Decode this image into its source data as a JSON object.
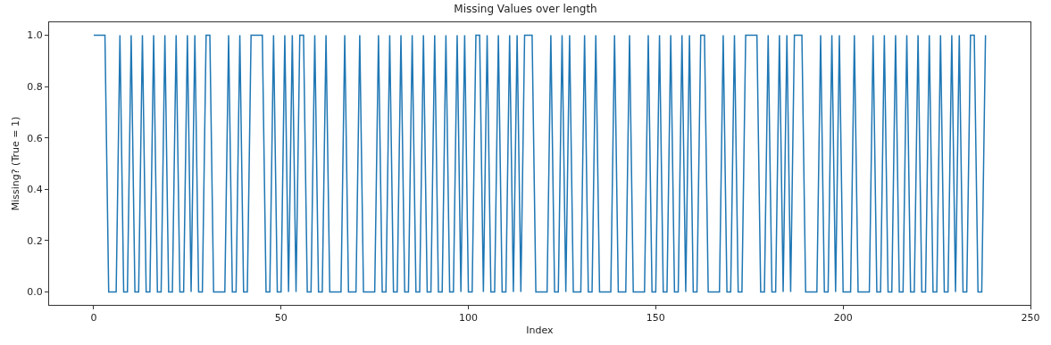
{
  "chart_data": {
    "type": "line",
    "title": "Missing Values over length",
    "xlabel": "Index",
    "ylabel": "Missing? (True = 1)",
    "x": [
      0,
      1,
      2,
      3,
      4,
      5,
      6,
      7,
      8,
      9,
      10,
      11,
      12,
      13,
      14,
      15,
      16,
      17,
      18,
      19,
      20,
      21,
      22,
      23,
      24,
      25,
      26,
      27,
      28,
      29,
      30,
      31,
      32,
      33,
      34,
      35,
      36,
      37,
      38,
      39,
      40,
      41,
      42,
      43,
      44,
      45,
      46,
      47,
      48,
      49,
      50,
      51,
      52,
      53,
      54,
      55,
      56,
      57,
      58,
      59,
      60,
      61,
      62,
      63,
      64,
      65,
      66,
      67,
      68,
      69,
      70,
      71,
      72,
      73,
      74,
      75,
      76,
      77,
      78,
      79,
      80,
      81,
      82,
      83,
      84,
      85,
      86,
      87,
      88,
      89,
      90,
      91,
      92,
      93,
      94,
      95,
      96,
      97,
      98,
      99,
      100,
      101,
      102,
      103,
      104,
      105,
      106,
      107,
      108,
      109,
      110,
      111,
      112,
      113,
      114,
      115,
      116,
      117,
      118,
      119,
      120,
      121,
      122,
      123,
      124,
      125,
      126,
      127,
      128,
      129,
      130,
      131,
      132,
      133,
      134,
      135,
      136,
      137,
      138,
      139,
      140,
      141,
      142,
      143,
      144,
      145,
      146,
      147,
      148,
      149,
      150,
      151,
      152,
      153,
      154,
      155,
      156,
      157,
      158,
      159,
      160,
      161,
      162,
      163,
      164,
      165,
      166,
      167,
      168,
      169,
      170,
      171,
      172,
      173,
      174,
      175,
      176,
      177,
      178,
      179,
      180,
      181,
      182,
      183,
      184,
      185,
      186,
      187,
      188,
      189,
      190,
      191,
      192,
      193,
      194,
      195,
      196,
      197,
      198,
      199,
      200,
      201,
      202,
      203,
      204,
      205,
      206,
      207,
      208,
      209,
      210,
      211,
      212,
      213,
      214,
      215,
      216,
      217,
      218,
      219,
      220,
      221,
      222,
      223,
      224,
      225,
      226,
      227,
      228,
      229,
      230,
      231,
      232,
      233,
      234,
      235,
      236,
      237,
      238
    ],
    "series": [
      {
        "color": "#1f77b4",
        "values": [
          1,
          1,
          1,
          1,
          0,
          0,
          0,
          1,
          0,
          0,
          1,
          0,
          0,
          1,
          0,
          0,
          1,
          0,
          0,
          1,
          0,
          0,
          1,
          0,
          0,
          1,
          0,
          1,
          0,
          0,
          1,
          1,
          0,
          0,
          0,
          0,
          1,
          0,
          0,
          1,
          0,
          0,
          1,
          1,
          1,
          1,
          0,
          0,
          1,
          0,
          0,
          1,
          0,
          1,
          0,
          1,
          1,
          0,
          0,
          1,
          0,
          0,
          1,
          0,
          0,
          0,
          0,
          1,
          0,
          0,
          0,
          1,
          0,
          0,
          0,
          0,
          1,
          0,
          0,
          1,
          0,
          0,
          1,
          0,
          0,
          1,
          0,
          0,
          1,
          0,
          0,
          1,
          0,
          0,
          1,
          0,
          0,
          1,
          0,
          1,
          0,
          0,
          1,
          1,
          0,
          1,
          0,
          0,
          1,
          0,
          0,
          1,
          0,
          1,
          0,
          1,
          1,
          1,
          0,
          0,
          0,
          0,
          1,
          0,
          0,
          1,
          0,
          1,
          0,
          0,
          0,
          1,
          0,
          0,
          1,
          0,
          0,
          0,
          0,
          1,
          0,
          0,
          0,
          1,
          0,
          0,
          0,
          0,
          1,
          0,
          0,
          1,
          0,
          0,
          1,
          0,
          0,
          1,
          0,
          1,
          0,
          0,
          1,
          1,
          0,
          0,
          0,
          0,
          1,
          0,
          0,
          1,
          0,
          0,
          1,
          1,
          1,
          1,
          0,
          0,
          1,
          0,
          0,
          1,
          0,
          1,
          0,
          1,
          1,
          1,
          0,
          0,
          0,
          0,
          1,
          0,
          0,
          1,
          0,
          1,
          0,
          0,
          0,
          1,
          0,
          0,
          0,
          0,
          1,
          0,
          0,
          1,
          0,
          0,
          1,
          0,
          0,
          1,
          0,
          0,
          1,
          0,
          0,
          1,
          0,
          0,
          1,
          0,
          0,
          1,
          0,
          1,
          0,
          0,
          1,
          1,
          0,
          0,
          1
        ]
      }
    ],
    "xlim": [
      -11.9,
      250
    ],
    "xticks": [
      0,
      50,
      100,
      150,
      200,
      250
    ],
    "ylim": [
      -0.05,
      1.05
    ],
    "yticks": [
      {
        "value": 0,
        "label": "0.0"
      },
      {
        "value": 0.2,
        "label": "0.2"
      },
      {
        "value": 0.4,
        "label": "0.4"
      },
      {
        "value": 0.6,
        "label": "0.6"
      },
      {
        "value": 0.8,
        "label": "0.8"
      },
      {
        "value": 1,
        "label": "1.0"
      }
    ],
    "marker": "none",
    "line_style": "solid"
  }
}
